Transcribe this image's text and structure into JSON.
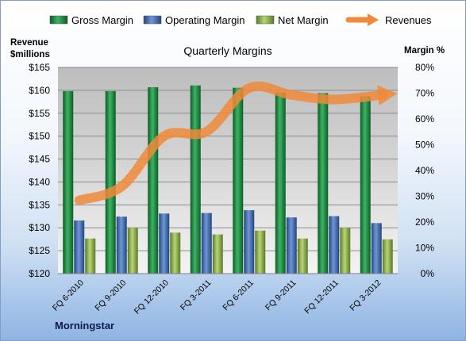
{
  "chart_data": {
    "type": "bar",
    "title": "Quarterly Margins",
    "left_axis_label_line1": "Revenue",
    "left_axis_label_line2": "$millions",
    "right_axis_label": "Margin %",
    "credit": "Morningstar",
    "categories": [
      "FQ 6-2010",
      "FQ 9-2010",
      "FQ 12-2010",
      "FQ 3-2011",
      "FQ 6-2011",
      "FQ 9-2011",
      "FQ 12-2011",
      "FQ 3-2012"
    ],
    "left_axis": {
      "min": 120,
      "max": 165,
      "step": 5,
      "ticks": [
        "$120",
        "$125",
        "$130",
        "$135",
        "$140",
        "$145",
        "$150",
        "$155",
        "$160",
        "$165"
      ]
    },
    "right_axis": {
      "min": 0,
      "max": 80,
      "step": 10,
      "ticks": [
        "0%",
        "10%",
        "20%",
        "30%",
        "40%",
        "50%",
        "60%",
        "70%",
        "80%"
      ]
    },
    "legend_position": "top",
    "gridlines": true,
    "series": [
      {
        "name": "Gross Margin",
        "kind": "bar",
        "axis": "right",
        "color": "#2e9a4f",
        "values": [
          70.8,
          70.8,
          72.3,
          73.0,
          72.1,
          70.3,
          70.0,
          68.8
        ]
      },
      {
        "name": "Operating Margin",
        "kind": "bar",
        "axis": "right",
        "color": "#4f78c0",
        "values": [
          20.6,
          22.1,
          23.3,
          23.5,
          24.6,
          21.8,
          22.3,
          19.6
        ]
      },
      {
        "name": "Net Margin",
        "kind": "bar",
        "axis": "right",
        "color": "#9bbf59",
        "values": [
          13.6,
          17.7,
          15.9,
          15.2,
          16.7,
          13.6,
          17.7,
          13.3
        ]
      },
      {
        "name": "Revenues",
        "kind": "line",
        "axis": "left",
        "color": "#f0893a",
        "values": [
          136.0,
          139.0,
          150.0,
          151.0,
          160.5,
          159.0,
          158.0,
          159.0
        ]
      }
    ]
  }
}
